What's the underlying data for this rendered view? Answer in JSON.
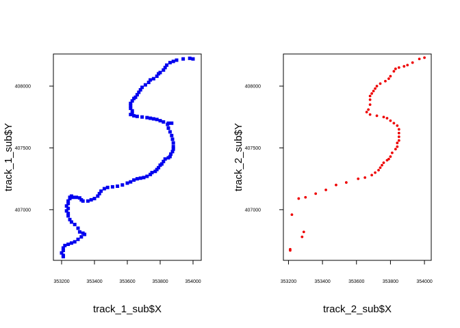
{
  "chart_data": [
    {
      "type": "scatter",
      "xlabel": "track_1_sub$X",
      "ylabel": "track_1_sub$Y",
      "xlim": [
        353150,
        354050
      ],
      "ylim": [
        406590,
        408260
      ],
      "x_ticks": [
        353200,
        353400,
        353600,
        353800,
        354000
      ],
      "y_ticks": [
        407000,
        407500,
        408000
      ],
      "marker": "square",
      "color": "#0000ee",
      "points": [
        [
          354000,
          408220
        ],
        [
          353980,
          408225
        ],
        [
          353940,
          408220
        ],
        [
          353900,
          408210
        ],
        [
          353880,
          408200
        ],
        [
          353860,
          408190
        ],
        [
          353840,
          408170
        ],
        [
          353830,
          408150
        ],
        [
          353820,
          408130
        ],
        [
          353800,
          408110
        ],
        [
          353790,
          408100
        ],
        [
          353780,
          408080
        ],
        [
          353760,
          408060
        ],
        [
          353740,
          408050
        ],
        [
          353730,
          408030
        ],
        [
          353710,
          408010
        ],
        [
          353690,
          407990
        ],
        [
          353680,
          407970
        ],
        [
          353670,
          407950
        ],
        [
          353660,
          407930
        ],
        [
          353650,
          407910
        ],
        [
          353640,
          407900
        ],
        [
          353630,
          407880
        ],
        [
          353620,
          407860
        ],
        [
          353620,
          407840
        ],
        [
          353620,
          407820
        ],
        [
          353630,
          407800
        ],
        [
          353630,
          407780
        ],
        [
          353620,
          407770
        ],
        [
          353640,
          407760
        ],
        [
          353660,
          407755
        ],
        [
          353690,
          407750
        ],
        [
          353720,
          407745
        ],
        [
          353740,
          407740
        ],
        [
          353760,
          407735
        ],
        [
          353780,
          407730
        ],
        [
          353800,
          407720
        ],
        [
          353820,
          407710
        ],
        [
          353850,
          407700
        ],
        [
          353870,
          407700
        ],
        [
          353845,
          407690
        ],
        [
          353850,
          407660
        ],
        [
          353860,
          407630
        ],
        [
          353870,
          407600
        ],
        [
          353875,
          407570
        ],
        [
          353880,
          407540
        ],
        [
          353880,
          407510
        ],
        [
          353880,
          407490
        ],
        [
          353875,
          407470
        ],
        [
          353865,
          407450
        ],
        [
          353860,
          407430
        ],
        [
          353850,
          407420
        ],
        [
          353830,
          407410
        ],
        [
          353820,
          407390
        ],
        [
          353810,
          407370
        ],
        [
          353800,
          407360
        ],
        [
          353790,
          407340
        ],
        [
          353780,
          407325
        ],
        [
          353770,
          407310
        ],
        [
          353750,
          407300
        ],
        [
          353740,
          407285
        ],
        [
          353720,
          407270
        ],
        [
          353700,
          407260
        ],
        [
          353680,
          407255
        ],
        [
          353660,
          407250
        ],
        [
          353640,
          407240
        ],
        [
          353620,
          407225
        ],
        [
          353600,
          407215
        ],
        [
          353570,
          407200
        ],
        [
          353540,
          407190
        ],
        [
          353510,
          407185
        ],
        [
          353480,
          407180
        ],
        [
          353460,
          407170
        ],
        [
          353440,
          407150
        ],
        [
          353430,
          407130
        ],
        [
          353420,
          407110
        ],
        [
          353400,
          407090
        ],
        [
          353380,
          407080
        ],
        [
          353360,
          407070
        ],
        [
          353330,
          407070
        ],
        [
          353320,
          407080
        ],
        [
          353310,
          407095
        ],
        [
          353290,
          407100
        ],
        [
          353270,
          407100
        ],
        [
          353250,
          407100
        ],
        [
          353260,
          407110
        ],
        [
          353250,
          407090
        ],
        [
          353240,
          407070
        ],
        [
          353240,
          407050
        ],
        [
          353230,
          407030
        ],
        [
          353240,
          407010
        ],
        [
          353230,
          406990
        ],
        [
          353240,
          406970
        ],
        [
          353240,
          406950
        ],
        [
          353250,
          406920
        ],
        [
          353260,
          406900
        ],
        [
          353280,
          406880
        ],
        [
          353300,
          406850
        ],
        [
          353310,
          406820
        ],
        [
          353330,
          406810
        ],
        [
          353340,
          406800
        ],
        [
          353320,
          406780
        ],
        [
          353300,
          406760
        ],
        [
          353280,
          406740
        ],
        [
          353260,
          406730
        ],
        [
          353240,
          406720
        ],
        [
          353220,
          406710
        ],
        [
          353210,
          406690
        ],
        [
          353210,
          406670
        ],
        [
          353200,
          406650
        ],
        [
          353210,
          406630
        ],
        [
          353210,
          406620
        ]
      ]
    },
    {
      "type": "scatter",
      "xlabel": "track_2_sub$X",
      "ylabel": "track_2_sub$Y",
      "xlim": [
        353170,
        354040
      ],
      "ylim": [
        406590,
        408260
      ],
      "x_ticks": [
        353200,
        353400,
        353600,
        353800,
        354000
      ],
      "y_ticks": [
        407000,
        407500,
        408000
      ],
      "marker": "dot",
      "color": "#ee0000",
      "points": [
        [
          354000,
          408230
        ],
        [
          353970,
          408220
        ],
        [
          353930,
          408190
        ],
        [
          353900,
          408170
        ],
        [
          353880,
          408160
        ],
        [
          353850,
          408150
        ],
        [
          353830,
          408140
        ],
        [
          353820,
          408120
        ],
        [
          353800,
          408080
        ],
        [
          353790,
          408060
        ],
        [
          353770,
          408040
        ],
        [
          353740,
          408020
        ],
        [
          353720,
          408000
        ],
        [
          353710,
          407980
        ],
        [
          353700,
          407960
        ],
        [
          353690,
          407940
        ],
        [
          353680,
          407920
        ],
        [
          353680,
          407890
        ],
        [
          353680,
          407850
        ],
        [
          353670,
          407810
        ],
        [
          353660,
          407790
        ],
        [
          353680,
          407770
        ],
        [
          353720,
          407760
        ],
        [
          353760,
          407750
        ],
        [
          353780,
          407740
        ],
        [
          353800,
          407720
        ],
        [
          353820,
          407700
        ],
        [
          353840,
          407680
        ],
        [
          353850,
          407650
        ],
        [
          353850,
          407620
        ],
        [
          353850,
          407590
        ],
        [
          353850,
          407560
        ],
        [
          353840,
          407540
        ],
        [
          353840,
          407510
        ],
        [
          353830,
          407490
        ],
        [
          353810,
          407460
        ],
        [
          353800,
          407430
        ],
        [
          353790,
          407410
        ],
        [
          353780,
          407400
        ],
        [
          353760,
          407380
        ],
        [
          353750,
          407360
        ],
        [
          353740,
          407340
        ],
        [
          353730,
          407320
        ],
        [
          353710,
          407300
        ],
        [
          353690,
          407280
        ],
        [
          353650,
          407260
        ],
        [
          353610,
          407250
        ],
        [
          353540,
          407220
        ],
        [
          353480,
          407200
        ],
        [
          353420,
          407160
        ],
        [
          353360,
          407130
        ],
        [
          353300,
          407100
        ],
        [
          353260,
          407090
        ],
        [
          353220,
          406960
        ],
        [
          353290,
          406820
        ],
        [
          353280,
          406780
        ],
        [
          353210,
          406680
        ],
        [
          353210,
          406670
        ]
      ]
    }
  ]
}
